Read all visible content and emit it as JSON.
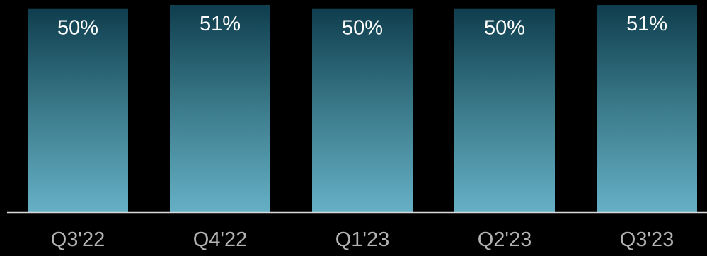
{
  "chart_data": {
    "type": "bar",
    "categories": [
      "Q3'22",
      "Q4'22",
      "Q1'23",
      "Q2'23",
      "Q3'23"
    ],
    "values": [
      50,
      51,
      50,
      50,
      51
    ],
    "data_labels": [
      "50%",
      "51%",
      "50%",
      "50%",
      "51%"
    ],
    "title": "",
    "xlabel": "",
    "ylabel": "",
    "ylim": [
      0,
      51
    ],
    "grid": false,
    "legend": "none",
    "colors": {
      "background": "#000000",
      "bar_top": "#0f3e4e",
      "bar_mid": "#3b7b8b",
      "bar_bottom": "#66b0c6",
      "axis_line": "#d9d9d9",
      "data_label": "#ffffff",
      "tick_label": "#b3b3b3"
    }
  }
}
